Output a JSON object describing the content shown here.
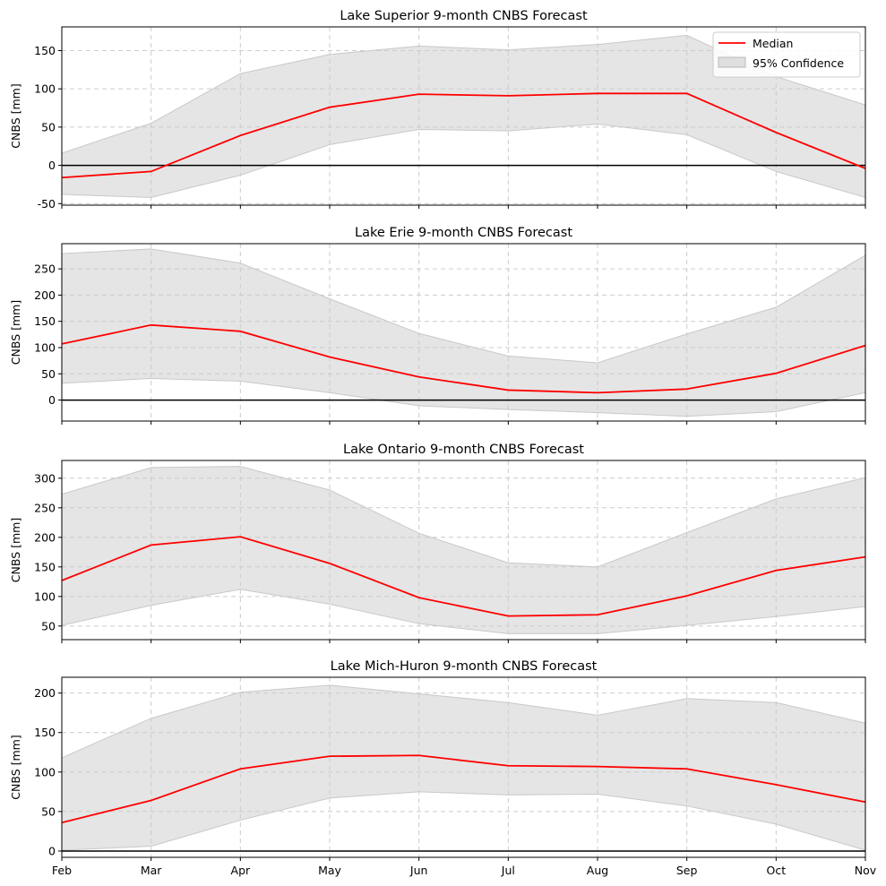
{
  "figure": {
    "x_tick_labels": [
      "Feb",
      "Mar",
      "Apr",
      "May",
      "Jun",
      "Jul",
      "Aug",
      "Sep",
      "Oct",
      "Nov"
    ],
    "legend": {
      "median_label": "Median",
      "confidence_label": "95% Confidence"
    },
    "colors": {
      "median": "#ff0000",
      "band": "#d3d3d3",
      "zero_line": "#000000",
      "grid": "#cccccc"
    }
  },
  "chart_data": [
    {
      "type": "area",
      "title": "Lake Superior 9-month CNBS Forecast",
      "xlabel": "",
      "ylabel": "CNBS [mm]",
      "categories": [
        "Feb",
        "Mar",
        "Apr",
        "May",
        "Jun",
        "Jul",
        "Aug",
        "Sep",
        "Oct",
        "Nov"
      ],
      "ylim": [
        -52,
        181
      ],
      "yticks": [
        -50,
        0,
        50,
        100,
        150
      ],
      "grid": true,
      "zero_line": true,
      "legend": "top-right",
      "series": [
        {
          "name": "Median",
          "values": [
            -16,
            -8,
            39,
            76,
            93,
            91,
            94,
            94,
            43,
            -4
          ]
        },
        {
          "name": "95% Confidence",
          "lower": [
            -38,
            -42,
            -13,
            27,
            47,
            45,
            54,
            40,
            -8,
            -42
          ],
          "upper": [
            16,
            55,
            120,
            145,
            156,
            151,
            158,
            170,
            116,
            79
          ]
        }
      ]
    },
    {
      "type": "area",
      "title": "Lake Erie 9-month CNBS Forecast",
      "xlabel": "",
      "ylabel": "CNBS [mm]",
      "categories": [
        "Feb",
        "Mar",
        "Apr",
        "May",
        "Jun",
        "Jul",
        "Aug",
        "Sep",
        "Oct",
        "Nov"
      ],
      "ylim": [
        -40,
        298
      ],
      "yticks": [
        0,
        50,
        100,
        150,
        200,
        250
      ],
      "grid": true,
      "zero_line": true,
      "series": [
        {
          "name": "Median",
          "values": [
            107,
            143,
            131,
            82,
            44,
            19,
            14,
            21,
            51,
            104
          ]
        },
        {
          "name": "95% Confidence",
          "lower": [
            32,
            41,
            36,
            14,
            -11,
            -18,
            -24,
            -31,
            -22,
            14
          ],
          "upper": [
            279,
            288,
            261,
            193,
            127,
            84,
            71,
            126,
            177,
            276
          ]
        }
      ]
    },
    {
      "type": "area",
      "title": "Lake Ontario 9-month CNBS Forecast",
      "xlabel": "",
      "ylabel": "CNBS [mm]",
      "categories": [
        "Feb",
        "Mar",
        "Apr",
        "May",
        "Jun",
        "Jul",
        "Aug",
        "Sep",
        "Oct",
        "Nov"
      ],
      "ylim": [
        27,
        330
      ],
      "yticks": [
        50,
        100,
        150,
        200,
        250,
        300
      ],
      "grid": true,
      "zero_line": false,
      "series": [
        {
          "name": "Median",
          "values": [
            127,
            187,
            201,
            156,
            98,
            67,
            69,
            101,
            144,
            167
          ]
        },
        {
          "name": "95% Confidence",
          "lower": [
            51,
            85,
            112,
            87,
            54,
            37,
            37,
            51,
            66,
            83
          ],
          "upper": [
            273,
            318,
            320,
            280,
            207,
            157,
            150,
            208,
            265,
            301
          ]
        }
      ]
    },
    {
      "type": "area",
      "title": "Lake Mich-Huron 9-month CNBS Forecast",
      "xlabel": "",
      "ylabel": "CNBS [mm]",
      "categories": [
        "Feb",
        "Mar",
        "Apr",
        "May",
        "Jun",
        "Jul",
        "Aug",
        "Sep",
        "Oct",
        "Nov"
      ],
      "ylim": [
        -8,
        220
      ],
      "yticks": [
        0,
        50,
        100,
        150,
        200
      ],
      "grid": true,
      "zero_line": true,
      "series": [
        {
          "name": "Median",
          "values": [
            36,
            64,
            104,
            120,
            121,
            108,
            107,
            104,
            84,
            62
          ]
        },
        {
          "name": "95% Confidence",
          "lower": [
            1,
            6,
            39,
            67,
            75,
            71,
            72,
            57,
            34,
            1
          ],
          "upper": [
            118,
            168,
            201,
            210,
            199,
            188,
            172,
            193,
            188,
            162
          ]
        }
      ]
    }
  ]
}
